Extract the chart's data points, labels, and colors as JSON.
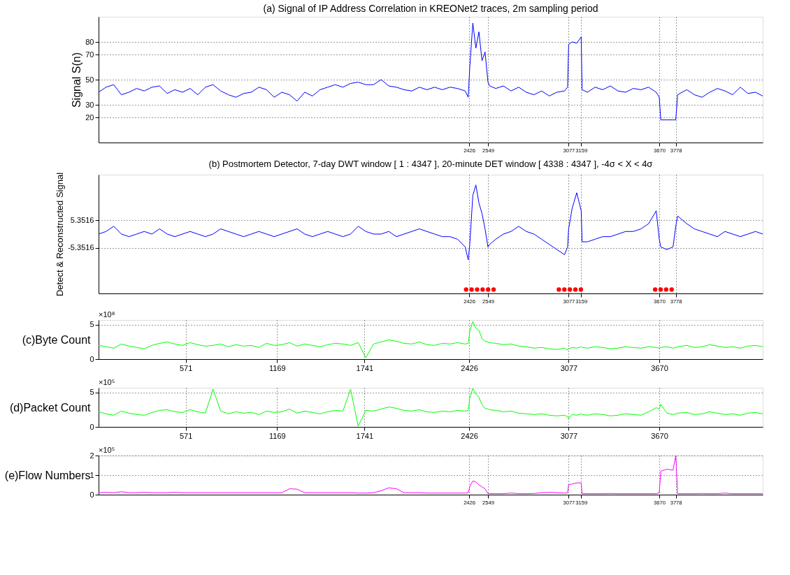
{
  "chart_data": [
    {
      "type": "line",
      "title": "(a) Signal of IP Address Correlation in KREONet2 traces,  2m sampling period",
      "ylabel": "Signal S(n)",
      "grid": true,
      "x": [
        1,
        50,
        100,
        150,
        200,
        250,
        300,
        350,
        400,
        450,
        500,
        550,
        600,
        650,
        700,
        750,
        800,
        850,
        900,
        950,
        1000,
        1050,
        1100,
        1150,
        1200,
        1250,
        1300,
        1350,
        1400,
        1450,
        1500,
        1550,
        1600,
        1650,
        1700,
        1750,
        1800,
        1850,
        1900,
        1950,
        2000,
        2050,
        2100,
        2150,
        2200,
        2250,
        2300,
        2350,
        2400,
        2420,
        2430,
        2450,
        2470,
        2490,
        2510,
        2530,
        2549,
        2560,
        2600,
        2650,
        2700,
        2750,
        2800,
        2850,
        2900,
        2950,
        3000,
        3050,
        3070,
        3077,
        3100,
        3130,
        3159,
        3165,
        3200,
        3250,
        3300,
        3350,
        3400,
        3450,
        3500,
        3550,
        3600,
        3650,
        3670,
        3680,
        3720,
        3760,
        3778,
        3790,
        3850,
        3900,
        3950,
        4000,
        4050,
        4100,
        4150,
        4200,
        4250,
        4300,
        4347
      ],
      "values": [
        40,
        44,
        46,
        38,
        40,
        43,
        41,
        44,
        45,
        39,
        42,
        40,
        43,
        38,
        44,
        46,
        41,
        38,
        36,
        39,
        40,
        44,
        42,
        36,
        40,
        38,
        33,
        40,
        37,
        42,
        44,
        46,
        44,
        47,
        48,
        46,
        46,
        50,
        45,
        44,
        42,
        41,
        44,
        42,
        44,
        42,
        44,
        43,
        41,
        36,
        60,
        95,
        75,
        88,
        65,
        72,
        48,
        45,
        43,
        45,
        41,
        44,
        40,
        38,
        41,
        37,
        40,
        41,
        44,
        78,
        80,
        79,
        84,
        42,
        40,
        44,
        42,
        45,
        41,
        40,
        43,
        42,
        44,
        40,
        36,
        18,
        18,
        18,
        18,
        38,
        42,
        38,
        36,
        40,
        43,
        41,
        38,
        44,
        39,
        40,
        37
      ],
      "color": "#0000ff",
      "xlim": [
        1,
        4347
      ],
      "xticks": [
        2426,
        2549,
        3077,
        3159,
        3670,
        3778
      ],
      "ylim": [
        0,
        100
      ],
      "yticks": [
        20,
        30,
        50,
        70,
        80
      ]
    },
    {
      "type": "line",
      "title": "(b) Postmortem Detector, 7-day DWT window [ 1 : 4347 ], 20-minute DET window [ 4338 : 4347 ], -4σ < X < 4σ",
      "ylabel": "Detect & Reconstructed Signal",
      "grid": true,
      "x": [
        1,
        50,
        100,
        150,
        200,
        250,
        300,
        350,
        400,
        450,
        500,
        550,
        600,
        650,
        700,
        750,
        800,
        850,
        900,
        950,
        1000,
        1050,
        1100,
        1150,
        1200,
        1250,
        1300,
        1350,
        1400,
        1450,
        1500,
        1550,
        1600,
        1650,
        1700,
        1750,
        1800,
        1850,
        1900,
        1950,
        2000,
        2050,
        2100,
        2150,
        2200,
        2250,
        2300,
        2350,
        2400,
        2420,
        2430,
        2450,
        2470,
        2490,
        2510,
        2530,
        2549,
        2560,
        2600,
        2650,
        2700,
        2750,
        2800,
        2850,
        2900,
        2950,
        3000,
        3050,
        3070,
        3077,
        3100,
        3130,
        3159,
        3165,
        3200,
        3250,
        3300,
        3350,
        3400,
        3450,
        3500,
        3550,
        3600,
        3650,
        3670,
        3680,
        3720,
        3760,
        3778,
        3790,
        3850,
        3900,
        3950,
        4000,
        4050,
        4100,
        4150,
        4200,
        4250,
        4300,
        4347
      ],
      "series": [
        {
          "type": "line",
          "color": "#0000ff",
          "values": [
            0,
            1,
            3,
            0,
            -1,
            0,
            1,
            0,
            2,
            0,
            -1,
            0,
            1,
            0,
            -1,
            0,
            2,
            1,
            0,
            -1,
            0,
            1,
            0,
            -1,
            0,
            1,
            2,
            0,
            -1,
            0,
            1,
            0,
            -1,
            0,
            3,
            1,
            0,
            0,
            1,
            -1,
            0,
            1,
            2,
            1,
            0,
            -1,
            -1,
            -2,
            -5,
            -10,
            -4,
            15,
            19,
            12,
            8,
            2,
            -5,
            -4,
            -2,
            0,
            1,
            3,
            1,
            0,
            -2,
            -4,
            -6,
            -8,
            -5,
            2,
            10,
            16,
            9,
            -3,
            -3,
            -2,
            -1,
            -1,
            0,
            1,
            1,
            2,
            4,
            9,
            -2,
            -5,
            -6,
            -5,
            3,
            7,
            4,
            2,
            1,
            0,
            -1,
            1,
            0,
            -1,
            0,
            1,
            0
          ]
        },
        {
          "type": "scatter",
          "color": "#ff0000",
          "x": [
            2406,
            2442,
            2478,
            2514,
            2550,
            2586,
            3013,
            3049,
            3085,
            3121,
            3157,
            3643,
            3679,
            3715,
            3751
          ],
          "values": [
            -21.5,
            -21.5,
            -21.5,
            -21.5,
            -21.5,
            -21.5,
            -21.5,
            -21.5,
            -21.5,
            -21.5,
            -21.5,
            -21.5,
            -21.5,
            -21.5,
            -21.5
          ]
        }
      ],
      "xlim": [
        1,
        4347
      ],
      "xticks": [
        2426,
        2549,
        3077,
        3159,
        3670,
        3778
      ],
      "ylim": [
        -23,
        23
      ],
      "yticks": [
        -5.3516,
        5.3516
      ]
    },
    {
      "type": "line",
      "ylabel": "(c)Byte Count",
      "grid": true,
      "annotations": [
        "×10⁸"
      ],
      "x": [
        1,
        50,
        100,
        150,
        200,
        250,
        300,
        350,
        400,
        450,
        500,
        550,
        600,
        650,
        700,
        750,
        800,
        850,
        900,
        950,
        1000,
        1050,
        1100,
        1150,
        1200,
        1250,
        1300,
        1350,
        1400,
        1450,
        1500,
        1550,
        1600,
        1650,
        1700,
        1750,
        1800,
        1850,
        1900,
        1950,
        2000,
        2050,
        2100,
        2150,
        2200,
        2250,
        2300,
        2350,
        2400,
        2420,
        2430,
        2450,
        2470,
        2490,
        2510,
        2530,
        2549,
        2560,
        2600,
        2650,
        2700,
        2750,
        2800,
        2850,
        2900,
        2950,
        3000,
        3050,
        3070,
        3077,
        3100,
        3130,
        3159,
        3165,
        3200,
        3250,
        3300,
        3350,
        3400,
        3450,
        3500,
        3550,
        3600,
        3650,
        3670,
        3680,
        3720,
        3760,
        3778,
        3790,
        3850,
        3900,
        3950,
        4000,
        4050,
        4100,
        4150,
        4200,
        4250,
        4300,
        4347
      ],
      "values": [
        2,
        1.8,
        1.6,
        2.2,
        1.9,
        1.7,
        1.5,
        2.0,
        2.3,
        2.5,
        2.2,
        2.0,
        2.4,
        2.1,
        1.9,
        2.0,
        2.2,
        1.8,
        2.1,
        1.9,
        2.0,
        1.7,
        2.3,
        2.0,
        2.1,
        2.4,
        1.9,
        2.2,
        2.0,
        1.8,
        2.1,
        2.3,
        2.2,
        2.0,
        2.4,
        0.2,
        2.2,
        2.5,
        2.8,
        2.6,
        2.3,
        2.2,
        2.5,
        2.1,
        2.0,
        2.3,
        2.2,
        2.4,
        2.2,
        2.3,
        4.0,
        5.5,
        4.5,
        4.2,
        3.0,
        2.6,
        2.5,
        2.4,
        2.3,
        2.1,
        2.2,
        1.9,
        1.8,
        1.6,
        1.7,
        1.5,
        1.4,
        1.6,
        1.3,
        1.5,
        1.7,
        1.6,
        1.8,
        1.7,
        1.6,
        1.8,
        1.7,
        1.5,
        1.6,
        1.8,
        1.7,
        1.6,
        1.8,
        1.7,
        1.6,
        1.7,
        1.8,
        1.6,
        1.7,
        1.8,
        2.0,
        1.7,
        1.8,
        2.1,
        1.9,
        1.7,
        1.8,
        1.6,
        1.9,
        2.0,
        1.8
      ],
      "color": "#00ff00",
      "xlim": [
        1,
        4347
      ],
      "xticks": [
        571,
        1169,
        1741,
        2426,
        3077,
        3670
      ],
      "ylim": [
        0,
        5.7
      ],
      "yticks": [
        0,
        5
      ]
    },
    {
      "type": "line",
      "ylabel": "(d)Packet Count",
      "grid": true,
      "annotations": [
        "×10⁵"
      ],
      "x": [
        1,
        50,
        100,
        150,
        200,
        250,
        300,
        350,
        400,
        450,
        500,
        550,
        600,
        650,
        700,
        750,
        800,
        850,
        900,
        950,
        1000,
        1050,
        1100,
        1150,
        1200,
        1250,
        1300,
        1350,
        1400,
        1450,
        1500,
        1550,
        1600,
        1650,
        1700,
        1750,
        1800,
        1850,
        1900,
        1950,
        2000,
        2050,
        2100,
        2150,
        2200,
        2250,
        2300,
        2350,
        2400,
        2420,
        2430,
        2450,
        2470,
        2490,
        2510,
        2530,
        2549,
        2560,
        2600,
        2650,
        2700,
        2750,
        2800,
        2850,
        2900,
        2950,
        3000,
        3050,
        3070,
        3077,
        3100,
        3130,
        3159,
        3165,
        3200,
        3250,
        3300,
        3350,
        3400,
        3450,
        3500,
        3550,
        3600,
        3650,
        3670,
        3680,
        3720,
        3760,
        3778,
        3790,
        3850,
        3900,
        3950,
        4000,
        4050,
        4100,
        4150,
        4200,
        4250,
        4300,
        4347
      ],
      "values": [
        2.2,
        1.9,
        1.7,
        2.3,
        2.0,
        1.8,
        1.7,
        2.1,
        2.4,
        2.5,
        2.2,
        2.1,
        2.5,
        2.2,
        2.0,
        5.5,
        2.3,
        1.9,
        2.2,
        2.0,
        2.1,
        1.8,
        2.3,
        2.1,
        2.2,
        2.6,
        2.0,
        2.3,
        2.1,
        1.9,
        2.2,
        2.4,
        2.3,
        5.5,
        0.1,
        2.4,
        2.3,
        2.6,
        2.9,
        2.7,
        2.4,
        2.3,
        2.5,
        2.2,
        2.1,
        2.3,
        2.2,
        2.4,
        2.3,
        2.4,
        4.2,
        5.6,
        4.8,
        4.3,
        3.2,
        2.7,
        2.6,
        2.5,
        2.4,
        2.2,
        2.3,
        2.0,
        1.9,
        1.8,
        1.9,
        1.7,
        1.6,
        1.7,
        1.5,
        1.2,
        1.8,
        1.7,
        1.9,
        1.8,
        1.7,
        1.9,
        1.8,
        1.6,
        1.7,
        1.9,
        1.8,
        1.7,
        2.2,
        2.8,
        2.6,
        3.3,
        2.0,
        1.8,
        1.9,
        2.0,
        2.1,
        1.8,
        1.9,
        2.2,
        2.0,
        1.8,
        1.9,
        1.7,
        2.0,
        2.1,
        1.9
      ],
      "color": "#00ff00",
      "xlim": [
        1,
        4347
      ],
      "xticks": [
        571,
        1169,
        1741,
        2426,
        3077,
        3670
      ],
      "ylim": [
        0,
        5.7
      ],
      "yticks": [
        0,
        5
      ]
    },
    {
      "type": "line",
      "ylabel": "(e)Flow Numbers",
      "grid": true,
      "annotations": [
        "×10⁵"
      ],
      "x": [
        1,
        50,
        100,
        150,
        200,
        250,
        300,
        350,
        400,
        450,
        500,
        550,
        600,
        650,
        700,
        750,
        800,
        850,
        900,
        950,
        1000,
        1050,
        1100,
        1150,
        1200,
        1250,
        1300,
        1350,
        1400,
        1450,
        1500,
        1550,
        1600,
        1650,
        1700,
        1750,
        1800,
        1850,
        1900,
        1950,
        2000,
        2050,
        2100,
        2150,
        2200,
        2250,
        2300,
        2350,
        2400,
        2420,
        2430,
        2450,
        2470,
        2490,
        2510,
        2530,
        2549,
        2560,
        2600,
        2650,
        2700,
        2750,
        2800,
        2850,
        2900,
        2950,
        3000,
        3050,
        3070,
        3077,
        3100,
        3130,
        3159,
        3165,
        3200,
        3250,
        3300,
        3350,
        3400,
        3450,
        3500,
        3550,
        3600,
        3650,
        3670,
        3680,
        3720,
        3760,
        3778,
        3790,
        3850,
        3900,
        3950,
        4000,
        4050,
        4100,
        4150,
        4200,
        4250,
        4300,
        4347
      ],
      "values": [
        0.1,
        0.12,
        0.1,
        0.15,
        0.1,
        0.1,
        0.12,
        0.1,
        0.1,
        0.1,
        0.12,
        0.1,
        0.1,
        0.1,
        0.1,
        0.1,
        0.1,
        0.1,
        0.1,
        0.1,
        0.1,
        0.1,
        0.1,
        0.1,
        0.1,
        0.3,
        0.28,
        0.1,
        0.1,
        0.1,
        0.1,
        0.1,
        0.1,
        0.1,
        0.08,
        0.08,
        0.1,
        0.2,
        0.35,
        0.3,
        0.1,
        0.1,
        0.1,
        0.08,
        0.08,
        0.08,
        0.08,
        0.08,
        0.08,
        0.1,
        0.4,
        0.7,
        0.65,
        0.5,
        0.4,
        0.3,
        0.05,
        0.05,
        0.05,
        0.05,
        0.08,
        0.05,
        0.05,
        0.06,
        0.1,
        0.12,
        0.1,
        0.08,
        0.1,
        0.5,
        0.55,
        0.6,
        0.6,
        0.05,
        0.05,
        0.05,
        0.05,
        0.06,
        0.05,
        0.05,
        0.05,
        0.05,
        0.05,
        0.05,
        0.1,
        1.2,
        1.3,
        1.25,
        2.0,
        0.05,
        0.05,
        0.05,
        0.06,
        0.05,
        0.05,
        0.08,
        0.05,
        0.05,
        0.05,
        0.05,
        0.05
      ],
      "color": "#ff00ff",
      "xlim": [
        1,
        4347
      ],
      "xticks": [
        2426,
        2549,
        3077,
        3159,
        3670,
        3778
      ],
      "ylim": [
        0,
        2
      ],
      "yticks": [
        0,
        1,
        2
      ]
    }
  ]
}
